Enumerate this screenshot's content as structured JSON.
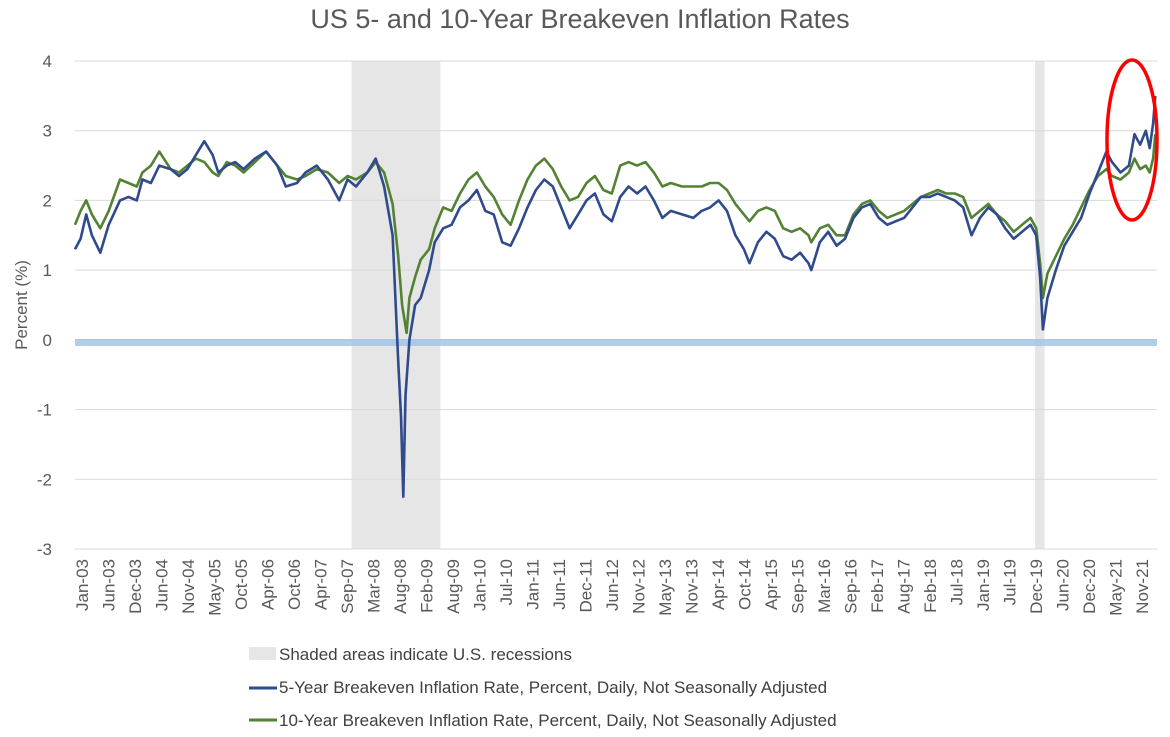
{
  "chart_data": {
    "type": "line",
    "title": "US 5- and 10-Year Breakeven Inflation Rates",
    "ylabel": "Percent (%)",
    "xlabel": "",
    "ylim": [
      -3,
      4
    ],
    "y_ticks": [
      "4",
      "3",
      "2",
      "1",
      "0",
      "-1",
      "-2",
      "-3"
    ],
    "x_tick_labels": [
      "Jan-03",
      "Jun-03",
      "Dec-03",
      "Jun-04",
      "Nov-04",
      "May-05",
      "Oct-05",
      "Apr-06",
      "Oct-06",
      "Apr-07",
      "Sep-07",
      "Mar-08",
      "Aug-08",
      "Feb-09",
      "Aug-09",
      "Jan-10",
      "Jul-10",
      "Jan-11",
      "Jun-11",
      "Dec-11",
      "Jun-12",
      "Nov-12",
      "May-13",
      "Nov-13",
      "Apr-14",
      "Oct-14",
      "Apr-15",
      "Sep-15",
      "Mar-16",
      "Sep-16",
      "Feb-17",
      "Aug-17",
      "Feb-18",
      "Jul-18",
      "Jan-19",
      "Jul-19",
      "Dec-19",
      "Jun-20",
      "Dec-20",
      "May-21",
      "Nov-21"
    ],
    "x_range": [
      2003.0,
      2022.25
    ],
    "grid": true,
    "recessions": [
      [
        2007.92,
        2009.5
      ],
      [
        2020.08,
        2020.25
      ]
    ],
    "annotation": "red ellipse highlighting recent spike",
    "colors": {
      "five_year": "#2f4b8c",
      "ten_year": "#548235",
      "recession": "#e6e6e6",
      "zero_line": "#9dc3e6",
      "annotation": "#ff0000"
    },
    "series": [
      {
        "name": "5-Year Breakeven Inflation Rate, Percent, Daily, Not Seasonally Adjusted",
        "points": [
          [
            2003.0,
            1.3
          ],
          [
            2003.1,
            1.45
          ],
          [
            2003.2,
            1.8
          ],
          [
            2003.3,
            1.5
          ],
          [
            2003.45,
            1.25
          ],
          [
            2003.6,
            1.65
          ],
          [
            2003.8,
            2.0
          ],
          [
            2003.95,
            2.05
          ],
          [
            2004.1,
            2.0
          ],
          [
            2004.2,
            2.3
          ],
          [
            2004.35,
            2.25
          ],
          [
            2004.5,
            2.5
          ],
          [
            2004.7,
            2.45
          ],
          [
            2004.85,
            2.35
          ],
          [
            2005.0,
            2.45
          ],
          [
            2005.15,
            2.65
          ],
          [
            2005.3,
            2.85
          ],
          [
            2005.45,
            2.65
          ],
          [
            2005.55,
            2.4
          ],
          [
            2005.7,
            2.5
          ],
          [
            2005.85,
            2.55
          ],
          [
            2006.0,
            2.45
          ],
          [
            2006.2,
            2.6
          ],
          [
            2006.4,
            2.7
          ],
          [
            2006.6,
            2.5
          ],
          [
            2006.75,
            2.2
          ],
          [
            2006.95,
            2.25
          ],
          [
            2007.1,
            2.4
          ],
          [
            2007.3,
            2.5
          ],
          [
            2007.5,
            2.3
          ],
          [
            2007.7,
            2.0
          ],
          [
            2007.85,
            2.3
          ],
          [
            2008.0,
            2.2
          ],
          [
            2008.2,
            2.4
          ],
          [
            2008.35,
            2.6
          ],
          [
            2008.5,
            2.2
          ],
          [
            2008.65,
            1.5
          ],
          [
            2008.75,
            -0.3
          ],
          [
            2008.8,
            -1.1
          ],
          [
            2008.84,
            -2.25
          ],
          [
            2008.88,
            -0.8
          ],
          [
            2008.95,
            0.0
          ],
          [
            2009.05,
            0.5
          ],
          [
            2009.15,
            0.6
          ],
          [
            2009.3,
            1.0
          ],
          [
            2009.4,
            1.4
          ],
          [
            2009.55,
            1.6
          ],
          [
            2009.7,
            1.65
          ],
          [
            2009.85,
            1.9
          ],
          [
            2010.0,
            2.0
          ],
          [
            2010.15,
            2.15
          ],
          [
            2010.3,
            1.85
          ],
          [
            2010.45,
            1.8
          ],
          [
            2010.6,
            1.4
          ],
          [
            2010.75,
            1.35
          ],
          [
            2010.9,
            1.6
          ],
          [
            2011.05,
            1.9
          ],
          [
            2011.2,
            2.15
          ],
          [
            2011.35,
            2.3
          ],
          [
            2011.5,
            2.2
          ],
          [
            2011.65,
            1.9
          ],
          [
            2011.8,
            1.6
          ],
          [
            2011.95,
            1.8
          ],
          [
            2012.1,
            2.0
          ],
          [
            2012.25,
            2.1
          ],
          [
            2012.4,
            1.8
          ],
          [
            2012.55,
            1.7
          ],
          [
            2012.7,
            2.05
          ],
          [
            2012.85,
            2.2
          ],
          [
            2013.0,
            2.1
          ],
          [
            2013.15,
            2.2
          ],
          [
            2013.3,
            2.0
          ],
          [
            2013.45,
            1.75
          ],
          [
            2013.6,
            1.85
          ],
          [
            2013.8,
            1.8
          ],
          [
            2014.0,
            1.75
          ],
          [
            2014.15,
            1.85
          ],
          [
            2014.3,
            1.9
          ],
          [
            2014.45,
            2.0
          ],
          [
            2014.6,
            1.85
          ],
          [
            2014.75,
            1.5
          ],
          [
            2014.9,
            1.3
          ],
          [
            2015.0,
            1.1
          ],
          [
            2015.15,
            1.4
          ],
          [
            2015.3,
            1.55
          ],
          [
            2015.45,
            1.45
          ],
          [
            2015.6,
            1.2
          ],
          [
            2015.75,
            1.15
          ],
          [
            2015.9,
            1.25
          ],
          [
            2016.05,
            1.1
          ],
          [
            2016.1,
            1.0
          ],
          [
            2016.25,
            1.4
          ],
          [
            2016.4,
            1.55
          ],
          [
            2016.55,
            1.35
          ],
          [
            2016.7,
            1.45
          ],
          [
            2016.85,
            1.75
          ],
          [
            2017.0,
            1.9
          ],
          [
            2017.15,
            1.95
          ],
          [
            2017.3,
            1.75
          ],
          [
            2017.45,
            1.65
          ],
          [
            2017.6,
            1.7
          ],
          [
            2017.75,
            1.75
          ],
          [
            2017.9,
            1.9
          ],
          [
            2018.05,
            2.05
          ],
          [
            2018.2,
            2.05
          ],
          [
            2018.35,
            2.1
          ],
          [
            2018.5,
            2.05
          ],
          [
            2018.65,
            2.0
          ],
          [
            2018.8,
            1.9
          ],
          [
            2018.95,
            1.5
          ],
          [
            2019.1,
            1.75
          ],
          [
            2019.25,
            1.9
          ],
          [
            2019.4,
            1.8
          ],
          [
            2019.55,
            1.6
          ],
          [
            2019.7,
            1.45
          ],
          [
            2019.85,
            1.55
          ],
          [
            2020.0,
            1.65
          ],
          [
            2020.1,
            1.5
          ],
          [
            2020.17,
            0.9
          ],
          [
            2020.22,
            0.15
          ],
          [
            2020.3,
            0.6
          ],
          [
            2020.45,
            1.0
          ],
          [
            2020.6,
            1.35
          ],
          [
            2020.75,
            1.55
          ],
          [
            2020.9,
            1.75
          ],
          [
            2021.05,
            2.1
          ],
          [
            2021.2,
            2.4
          ],
          [
            2021.35,
            2.7
          ],
          [
            2021.45,
            2.55
          ],
          [
            2021.6,
            2.4
          ],
          [
            2021.75,
            2.5
          ],
          [
            2021.85,
            2.95
          ],
          [
            2021.95,
            2.8
          ],
          [
            2022.05,
            3.0
          ],
          [
            2022.12,
            2.75
          ],
          [
            2022.18,
            3.1
          ],
          [
            2022.22,
            3.5
          ]
        ]
      },
      {
        "name": "10-Year Breakeven Inflation Rate, Percent, Daily, Not Seasonally Adjusted",
        "points": [
          [
            2003.0,
            1.65
          ],
          [
            2003.1,
            1.85
          ],
          [
            2003.2,
            2.0
          ],
          [
            2003.3,
            1.8
          ],
          [
            2003.45,
            1.6
          ],
          [
            2003.6,
            1.85
          ],
          [
            2003.8,
            2.3
          ],
          [
            2003.95,
            2.25
          ],
          [
            2004.1,
            2.2
          ],
          [
            2004.2,
            2.4
          ],
          [
            2004.35,
            2.5
          ],
          [
            2004.5,
            2.7
          ],
          [
            2004.7,
            2.45
          ],
          [
            2004.85,
            2.4
          ],
          [
            2005.0,
            2.5
          ],
          [
            2005.15,
            2.6
          ],
          [
            2005.3,
            2.55
          ],
          [
            2005.45,
            2.4
          ],
          [
            2005.55,
            2.35
          ],
          [
            2005.7,
            2.55
          ],
          [
            2005.85,
            2.5
          ],
          [
            2006.0,
            2.4
          ],
          [
            2006.2,
            2.55
          ],
          [
            2006.4,
            2.7
          ],
          [
            2006.6,
            2.5
          ],
          [
            2006.75,
            2.35
          ],
          [
            2006.95,
            2.3
          ],
          [
            2007.1,
            2.35
          ],
          [
            2007.3,
            2.45
          ],
          [
            2007.5,
            2.4
          ],
          [
            2007.7,
            2.25
          ],
          [
            2007.85,
            2.35
          ],
          [
            2008.0,
            2.3
          ],
          [
            2008.2,
            2.4
          ],
          [
            2008.35,
            2.55
          ],
          [
            2008.5,
            2.4
          ],
          [
            2008.65,
            1.95
          ],
          [
            2008.75,
            1.2
          ],
          [
            2008.82,
            0.5
          ],
          [
            2008.9,
            0.1
          ],
          [
            2008.95,
            0.6
          ],
          [
            2009.05,
            0.9
          ],
          [
            2009.15,
            1.15
          ],
          [
            2009.3,
            1.3
          ],
          [
            2009.4,
            1.6
          ],
          [
            2009.55,
            1.9
          ],
          [
            2009.7,
            1.85
          ],
          [
            2009.85,
            2.1
          ],
          [
            2010.0,
            2.3
          ],
          [
            2010.15,
            2.4
          ],
          [
            2010.3,
            2.2
          ],
          [
            2010.45,
            2.05
          ],
          [
            2010.6,
            1.8
          ],
          [
            2010.75,
            1.65
          ],
          [
            2010.9,
            2.0
          ],
          [
            2011.05,
            2.3
          ],
          [
            2011.2,
            2.5
          ],
          [
            2011.35,
            2.6
          ],
          [
            2011.5,
            2.45
          ],
          [
            2011.65,
            2.2
          ],
          [
            2011.8,
            2.0
          ],
          [
            2011.95,
            2.05
          ],
          [
            2012.1,
            2.25
          ],
          [
            2012.25,
            2.35
          ],
          [
            2012.4,
            2.15
          ],
          [
            2012.55,
            2.1
          ],
          [
            2012.7,
            2.5
          ],
          [
            2012.85,
            2.55
          ],
          [
            2013.0,
            2.5
          ],
          [
            2013.15,
            2.55
          ],
          [
            2013.3,
            2.4
          ],
          [
            2013.45,
            2.2
          ],
          [
            2013.6,
            2.25
          ],
          [
            2013.8,
            2.2
          ],
          [
            2014.0,
            2.2
          ],
          [
            2014.15,
            2.2
          ],
          [
            2014.3,
            2.25
          ],
          [
            2014.45,
            2.25
          ],
          [
            2014.6,
            2.15
          ],
          [
            2014.75,
            1.95
          ],
          [
            2014.9,
            1.8
          ],
          [
            2015.0,
            1.7
          ],
          [
            2015.15,
            1.85
          ],
          [
            2015.3,
            1.9
          ],
          [
            2015.45,
            1.85
          ],
          [
            2015.6,
            1.6
          ],
          [
            2015.75,
            1.55
          ],
          [
            2015.9,
            1.6
          ],
          [
            2016.05,
            1.5
          ],
          [
            2016.1,
            1.4
          ],
          [
            2016.25,
            1.6
          ],
          [
            2016.4,
            1.65
          ],
          [
            2016.55,
            1.5
          ],
          [
            2016.7,
            1.5
          ],
          [
            2016.85,
            1.8
          ],
          [
            2017.0,
            1.95
          ],
          [
            2017.15,
            2.0
          ],
          [
            2017.3,
            1.85
          ],
          [
            2017.45,
            1.75
          ],
          [
            2017.6,
            1.8
          ],
          [
            2017.75,
            1.85
          ],
          [
            2017.9,
            1.95
          ],
          [
            2018.05,
            2.05
          ],
          [
            2018.2,
            2.1
          ],
          [
            2018.35,
            2.15
          ],
          [
            2018.5,
            2.1
          ],
          [
            2018.65,
            2.1
          ],
          [
            2018.8,
            2.05
          ],
          [
            2018.95,
            1.75
          ],
          [
            2019.1,
            1.85
          ],
          [
            2019.25,
            1.95
          ],
          [
            2019.4,
            1.8
          ],
          [
            2019.55,
            1.7
          ],
          [
            2019.7,
            1.55
          ],
          [
            2019.85,
            1.65
          ],
          [
            2020.0,
            1.75
          ],
          [
            2020.1,
            1.6
          ],
          [
            2020.17,
            1.1
          ],
          [
            2020.22,
            0.6
          ],
          [
            2020.3,
            0.95
          ],
          [
            2020.45,
            1.2
          ],
          [
            2020.6,
            1.45
          ],
          [
            2020.75,
            1.65
          ],
          [
            2020.9,
            1.9
          ],
          [
            2021.05,
            2.15
          ],
          [
            2021.2,
            2.35
          ],
          [
            2021.35,
            2.45
          ],
          [
            2021.45,
            2.35
          ],
          [
            2021.6,
            2.3
          ],
          [
            2021.75,
            2.4
          ],
          [
            2021.85,
            2.6
          ],
          [
            2021.95,
            2.45
          ],
          [
            2022.05,
            2.5
          ],
          [
            2022.12,
            2.4
          ],
          [
            2022.18,
            2.6
          ],
          [
            2022.22,
            2.95
          ]
        ]
      }
    ]
  },
  "legend": {
    "recession_label": "Shaded areas indicate U.S. recessions",
    "five_year_label": "5-Year Breakeven Inflation Rate, Percent, Daily, Not Seasonally Adjusted",
    "ten_year_label": "10-Year Breakeven Inflation Rate, Percent, Daily, Not Seasonally Adjusted"
  }
}
